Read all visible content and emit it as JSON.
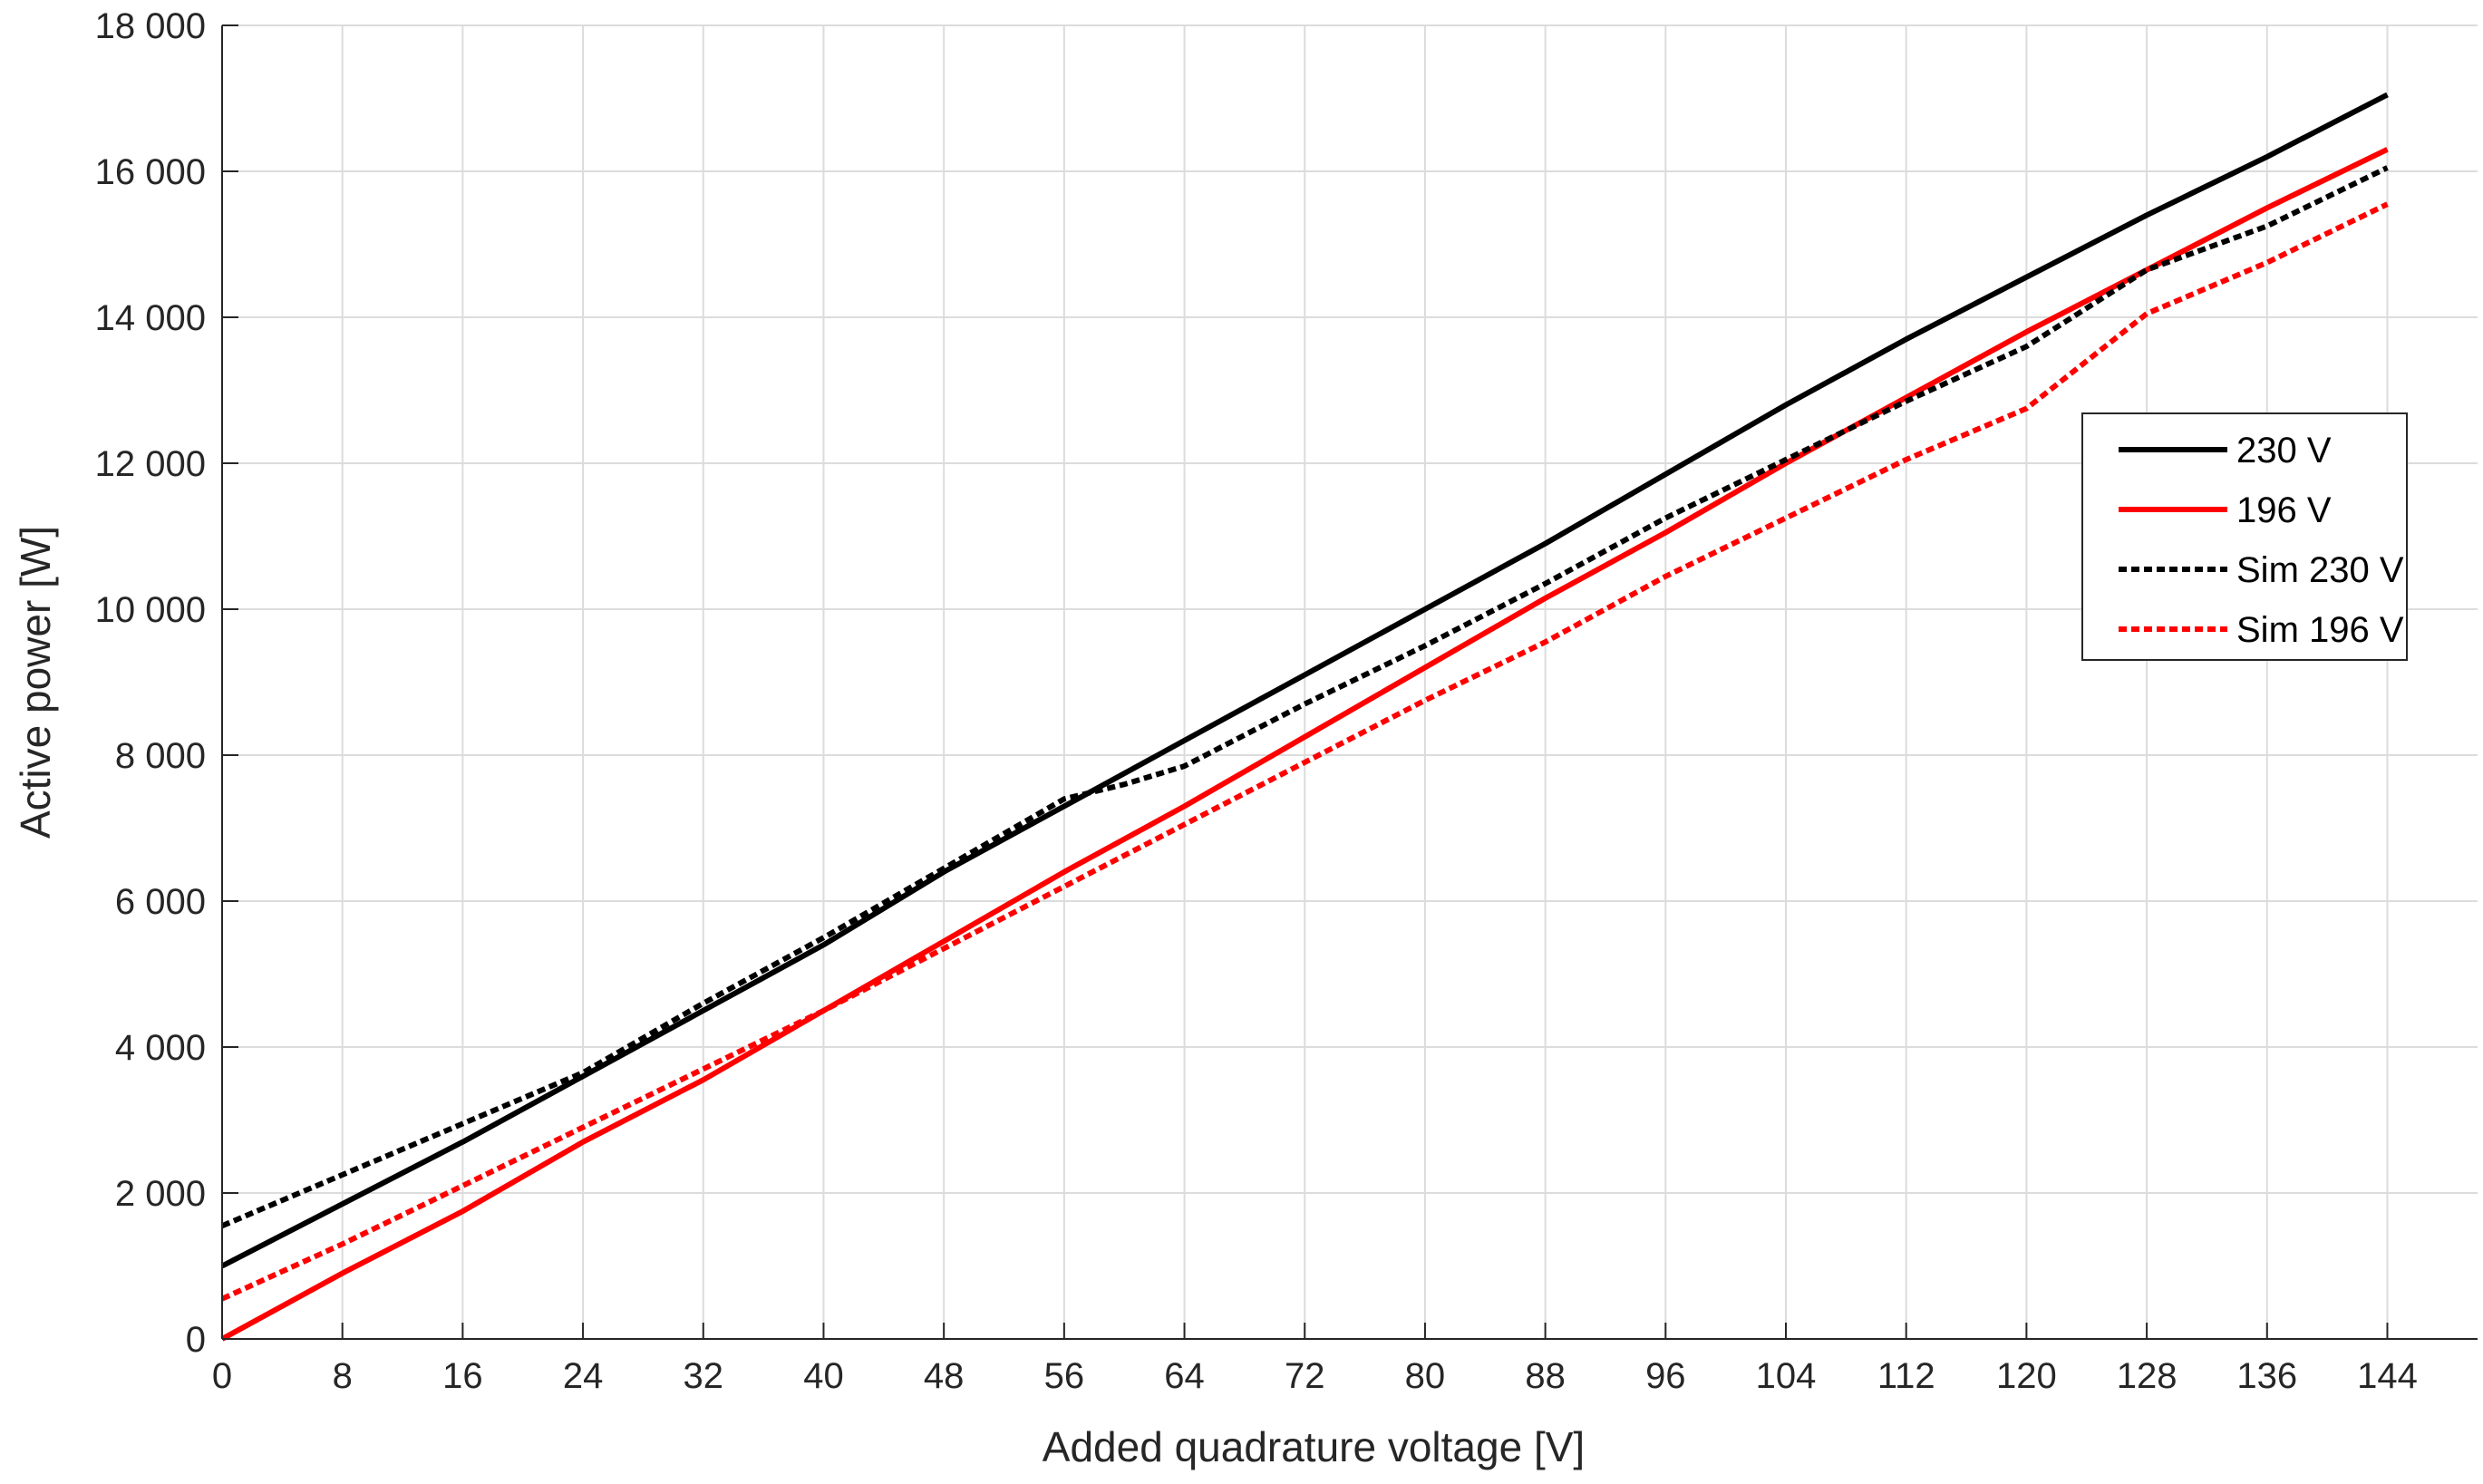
{
  "chart_data": {
    "type": "line",
    "title": "",
    "xlabel": "Added quadrature voltage [V]",
    "ylabel": "Active power [W]",
    "xlim": [
      0,
      150
    ],
    "ylim": [
      0,
      18000
    ],
    "grid": true,
    "legend_position": "right",
    "x_ticks": [
      0,
      8,
      16,
      24,
      32,
      40,
      48,
      56,
      64,
      72,
      80,
      88,
      96,
      104,
      112,
      120,
      128,
      136,
      144
    ],
    "x_tick_labels": [
      "0",
      "8",
      "16",
      "24",
      "32",
      "40",
      "48",
      "56",
      "64",
      "72",
      "80",
      "88",
      "96",
      "104",
      "112",
      "120",
      "128",
      "136",
      "144"
    ],
    "y_ticks": [
      0,
      2000,
      4000,
      6000,
      8000,
      10000,
      12000,
      14000,
      16000,
      18000
    ],
    "y_tick_labels": [
      "0",
      "2 000",
      "4 000",
      "6 000",
      "8 000",
      "10 000",
      "12 000",
      "14 000",
      "16 000",
      "18 000"
    ],
    "series": [
      {
        "name": "230 V",
        "color": "#000000",
        "dash": "solid",
        "x": [
          0,
          16,
          24,
          32,
          40,
          48,
          56,
          64,
          72,
          80,
          88,
          96,
          104,
          112,
          120,
          128,
          136,
          144
        ],
        "y": [
          1000,
          2700,
          3600,
          4500,
          5400,
          6400,
          7300,
          8200,
          9100,
          10000,
          10900,
          11850,
          12800,
          13700,
          14550,
          15400,
          16200,
          17050
        ]
      },
      {
        "name": "196 V",
        "color": "#ff0000",
        "dash": "solid",
        "x": [
          0,
          8,
          16,
          24,
          32,
          40,
          48,
          56,
          64,
          72,
          80,
          88,
          96,
          104,
          112,
          120,
          128,
          136,
          144
        ],
        "y": [
          0,
          900,
          1750,
          2700,
          3550,
          4500,
          5450,
          6400,
          7300,
          8250,
          9200,
          10150,
          11050,
          12000,
          12900,
          13800,
          14650,
          15500,
          16300
        ]
      },
      {
        "name": "Sim 230 V",
        "color": "#000000",
        "dash": "dotted",
        "x": [
          0,
          8,
          16,
          24,
          32,
          40,
          48,
          56,
          60,
          64,
          72,
          80,
          88,
          96,
          104,
          112,
          120,
          128,
          136,
          144
        ],
        "y": [
          1550,
          2250,
          2950,
          3650,
          4600,
          5500,
          6450,
          7400,
          7600,
          7850,
          8700,
          9500,
          10350,
          11250,
          12050,
          12850,
          13600,
          14650,
          15250,
          16050
        ]
      },
      {
        "name": "Sim 196 V",
        "color": "#ff0000",
        "dash": "dotted",
        "x": [
          0,
          8,
          16,
          24,
          32,
          40,
          48,
          56,
          64,
          72,
          80,
          88,
          96,
          104,
          112,
          120,
          128,
          136,
          144
        ],
        "y": [
          550,
          1300,
          2100,
          2900,
          3700,
          4500,
          5350,
          6200,
          7050,
          7900,
          8750,
          9550,
          10450,
          11250,
          12050,
          12750,
          14050,
          14750,
          15550
        ]
      }
    ]
  }
}
